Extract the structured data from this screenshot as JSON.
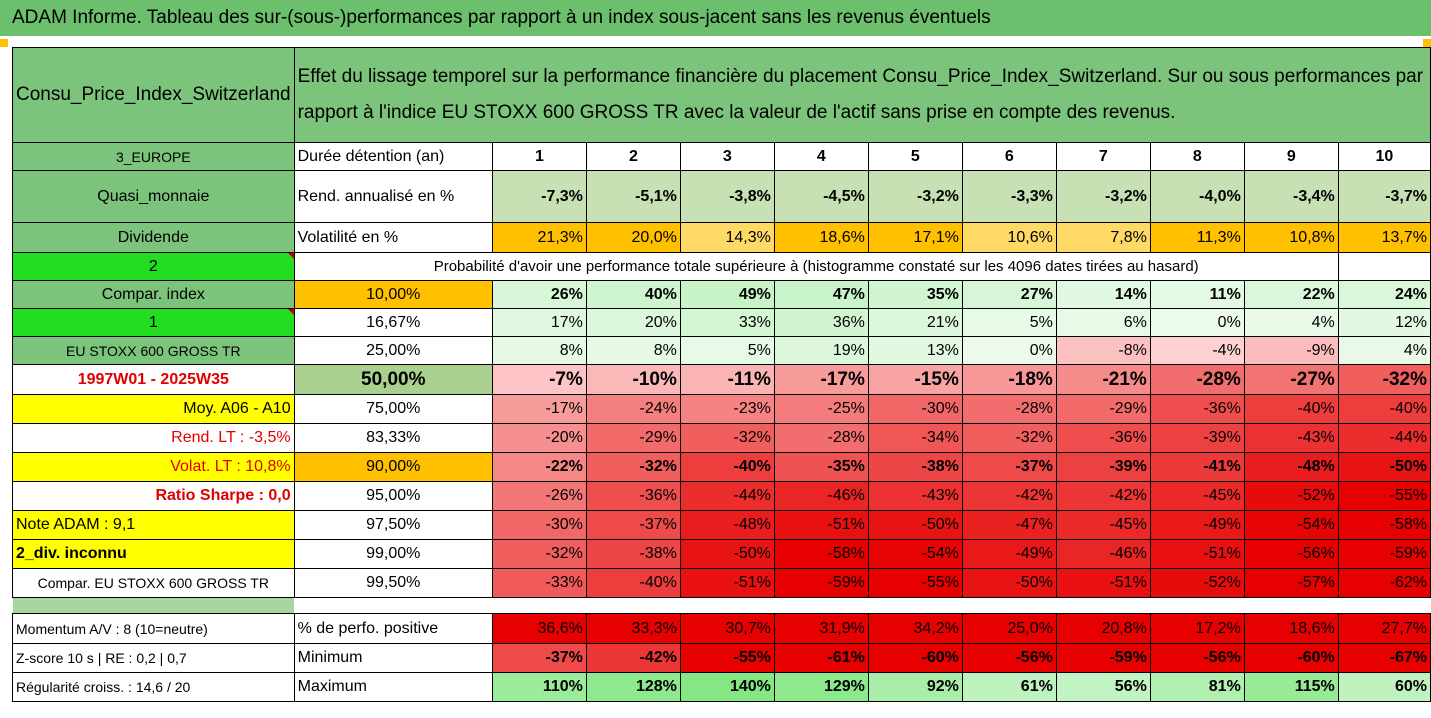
{
  "title": "ADAM Informe. Tableau des sur-(sous-)performances par rapport à un index sous-jacent sans les revenus éventuels",
  "colors": {
    "header_green": "#7cc47c",
    "orange": "#ffc000",
    "yellow": "#ffff00",
    "bright_green": "#22dd22",
    "red_label": "#e00000"
  },
  "header": {
    "asset": "Consu_Price_Index_Switzerland",
    "description": "Effet du lissage temporel sur la performance financière du placement Consu_Price_Index_Switzerland. Sur ou sous performances par rapport à l'indice EU STOXX 600 GROSS TR avec la valeur de l'actif sans prise en compte des revenus."
  },
  "years": [
    "1",
    "2",
    "3",
    "4",
    "5",
    "6",
    "7",
    "8",
    "9",
    "10"
  ],
  "left_labels": {
    "region": "3_EUROPE",
    "category": "Quasi_monnaie",
    "dividend": "Dividende",
    "two": "2",
    "compar_index": "Compar. index",
    "one": "1",
    "index_name": "EU STOXX 600 GROSS TR",
    "period": "1997W01 - 2025W35",
    "moy": "Moy. A06 - A10",
    "rend_lt": "Rend. LT :   -3,5%",
    "volat_lt": "Volat. LT :   10,8%",
    "sharpe": "Ratio Sharpe :   0,0",
    "note": "Note ADAM : 9,1",
    "div": "2_div. inconnu",
    "compar_full": "Compar. EU STOXX 600 GROSS TR",
    "momentum": "Momentum A/V : 8 (10=neutre)",
    "zscore": "Z-score 10 s  |  RE : 0,2  |  0,7",
    "regularite": "Régularité croiss. : 14,6 / 20"
  },
  "row_labels": {
    "duree": "Durée détention (an)",
    "rend": "Rend. annualisé en %",
    "vol": "Volatilité en %",
    "proba": "Probabilité d'avoir une performance totale supérieure à (histogramme constaté sur les 4096 dates tirées au hasard)",
    "perf_pos": "% de perfo. positive",
    "minimum": "Minimum",
    "maximum": "Maximum"
  },
  "rend_values": [
    "-7,3%",
    "-5,1%",
    "-3,8%",
    "-4,5%",
    "-3,2%",
    "-3,3%",
    "-3,2%",
    "-4,0%",
    "-3,4%",
    "-3,7%"
  ],
  "vol_values": [
    "21,3%",
    "20,0%",
    "14,3%",
    "18,6%",
    "17,1%",
    "10,6%",
    "7,8%",
    "11,3%",
    "10,8%",
    "13,7%"
  ],
  "percentile_rows": [
    {
      "p": "10,00%",
      "v": [
        "26%",
        "40%",
        "49%",
        "47%",
        "35%",
        "27%",
        "14%",
        "11%",
        "22%",
        "24%"
      ]
    },
    {
      "p": "16,67%",
      "v": [
        "17%",
        "20%",
        "33%",
        "36%",
        "21%",
        "5%",
        "6%",
        "0%",
        "4%",
        "12%"
      ]
    },
    {
      "p": "25,00%",
      "v": [
        "8%",
        "8%",
        "5%",
        "19%",
        "13%",
        "0%",
        "-8%",
        "-4%",
        "-9%",
        "4%"
      ]
    },
    {
      "p": "50,00%",
      "v": [
        "-7%",
        "-10%",
        "-11%",
        "-17%",
        "-15%",
        "-18%",
        "-21%",
        "-28%",
        "-27%",
        "-32%"
      ]
    },
    {
      "p": "75,00%",
      "v": [
        "-17%",
        "-24%",
        "-23%",
        "-25%",
        "-30%",
        "-28%",
        "-29%",
        "-36%",
        "-40%",
        "-40%"
      ]
    },
    {
      "p": "83,33%",
      "v": [
        "-20%",
        "-29%",
        "-32%",
        "-28%",
        "-34%",
        "-32%",
        "-36%",
        "-39%",
        "-43%",
        "-44%"
      ]
    },
    {
      "p": "90,00%",
      "v": [
        "-22%",
        "-32%",
        "-40%",
        "-35%",
        "-38%",
        "-37%",
        "-39%",
        "-41%",
        "-48%",
        "-50%"
      ]
    },
    {
      "p": "95,00%",
      "v": [
        "-26%",
        "-36%",
        "-44%",
        "-46%",
        "-43%",
        "-42%",
        "-42%",
        "-45%",
        "-52%",
        "-55%"
      ]
    },
    {
      "p": "97,50%",
      "v": [
        "-30%",
        "-37%",
        "-48%",
        "-51%",
        "-50%",
        "-47%",
        "-45%",
        "-49%",
        "-54%",
        "-58%"
      ]
    },
    {
      "p": "99,00%",
      "v": [
        "-32%",
        "-38%",
        "-50%",
        "-58%",
        "-54%",
        "-49%",
        "-46%",
        "-51%",
        "-56%",
        "-59%"
      ]
    },
    {
      "p": "99,50%",
      "v": [
        "-33%",
        "-40%",
        "-51%",
        "-59%",
        "-55%",
        "-50%",
        "-51%",
        "-52%",
        "-57%",
        "-62%"
      ]
    }
  ],
  "perf_pos_values": [
    "36,6%",
    "33,3%",
    "30,7%",
    "31,9%",
    "34,2%",
    "25,0%",
    "20,8%",
    "17,2%",
    "18,6%",
    "27,7%"
  ],
  "min_values": [
    "-37%",
    "-42%",
    "-55%",
    "-61%",
    "-60%",
    "-56%",
    "-59%",
    "-56%",
    "-60%",
    "-67%"
  ],
  "max_values": [
    "110%",
    "128%",
    "140%",
    "129%",
    "92%",
    "61%",
    "56%",
    "81%",
    "115%",
    "60%"
  ]
}
